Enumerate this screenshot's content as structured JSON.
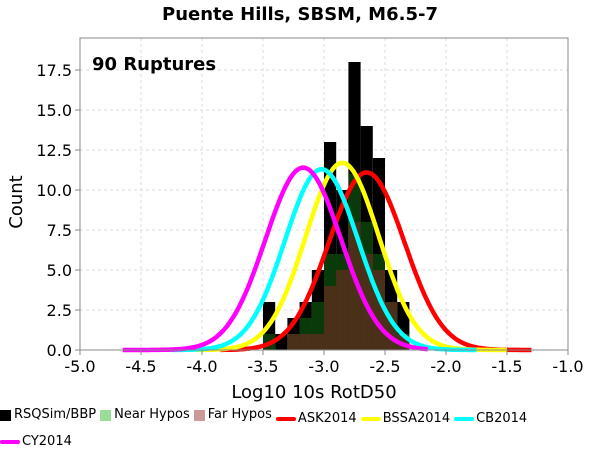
{
  "chart_data": {
    "type": "bar",
    "title": "Puente Hills, SBSM, M6.5-7",
    "xlabel": "Log10 10s RotD50",
    "ylabel": "Count",
    "annotation": "90 Ruptures",
    "xlim": [
      -5.0,
      -1.0
    ],
    "ylim": [
      0,
      19.5
    ],
    "xticks": [
      "-5.0",
      "-4.5",
      "-4.0",
      "-3.5",
      "-3.0",
      "-2.5",
      "-2.0",
      "-1.5",
      "-1.0"
    ],
    "yticks": [
      "0.0",
      "2.5",
      "5.0",
      "7.5",
      "10.0",
      "12.5",
      "15.0",
      "17.5"
    ],
    "grid": true,
    "legend_position": "bottom",
    "bin_width": 0.1,
    "histograms": [
      {
        "name": "RSQSim/BBP",
        "color": "#000000",
        "bins": [
          {
            "x0": -3.5,
            "value": 3
          },
          {
            "x0": -3.4,
            "value": 1
          },
          {
            "x0": -3.3,
            "value": 2
          },
          {
            "x0": -3.2,
            "value": 3
          },
          {
            "x0": -3.1,
            "value": 5
          },
          {
            "x0": -3.0,
            "value": 13
          },
          {
            "x0": -2.9,
            "value": 10
          },
          {
            "x0": -2.8,
            "value": 18
          },
          {
            "x0": -2.7,
            "value": 14
          },
          {
            "x0": -2.6,
            "value": 12
          },
          {
            "x0": -2.5,
            "value": 5
          },
          {
            "x0": -2.4,
            "value": 3
          }
        ]
      },
      {
        "name": "Near Hypos",
        "color": "#0a3a0a",
        "bins": [
          {
            "x0": -3.5,
            "value": 1
          },
          {
            "x0": -3.4,
            "value": 0
          },
          {
            "x0": -3.3,
            "value": 1
          },
          {
            "x0": -3.2,
            "value": 2
          },
          {
            "x0": -3.1,
            "value": 3
          },
          {
            "x0": -3.0,
            "value": 6
          },
          {
            "x0": -2.9,
            "value": 6
          },
          {
            "x0": -2.8,
            "value": 11
          },
          {
            "x0": -2.7,
            "value": 8
          },
          {
            "x0": -2.6,
            "value": 6
          },
          {
            "x0": -2.5,
            "value": 2
          },
          {
            "x0": -2.4,
            "value": 1
          }
        ]
      },
      {
        "name": "Far Hypos",
        "color": "#4a3018",
        "bins": [
          {
            "x0": -3.5,
            "value": 0
          },
          {
            "x0": -3.4,
            "value": 0
          },
          {
            "x0": -3.3,
            "value": 1
          },
          {
            "x0": -3.2,
            "value": 1
          },
          {
            "x0": -3.1,
            "value": 1
          },
          {
            "x0": -3.0,
            "value": 4
          },
          {
            "x0": -2.9,
            "value": 5
          },
          {
            "x0": -2.8,
            "value": 8
          },
          {
            "x0": -2.7,
            "value": 6
          },
          {
            "x0": -2.6,
            "value": 5
          },
          {
            "x0": -2.5,
            "value": 3
          },
          {
            "x0": -2.4,
            "value": 1
          }
        ]
      }
    ],
    "curves": [
      {
        "name": "ASK2014",
        "color": "#ff0000",
        "mean": -2.65,
        "sd": 0.31,
        "peak": 11.1,
        "x_range": [
          -3.85,
          -1.3
        ]
      },
      {
        "name": "BSSA2014",
        "color": "#ffff00",
        "mean": -2.85,
        "sd": 0.3,
        "peak": 11.7,
        "x_range": [
          -4.05,
          -1.5
        ]
      },
      {
        "name": "CB2014",
        "color": "#00ffff",
        "mean": -3.02,
        "sd": 0.3,
        "peak": 11.3,
        "x_range": [
          -4.25,
          -1.75
        ]
      },
      {
        "name": "CY2014",
        "color": "#ff00ff",
        "mean": -3.17,
        "sd": 0.31,
        "peak": 11.4,
        "x_range": [
          -4.65,
          -2.15
        ]
      }
    ]
  }
}
